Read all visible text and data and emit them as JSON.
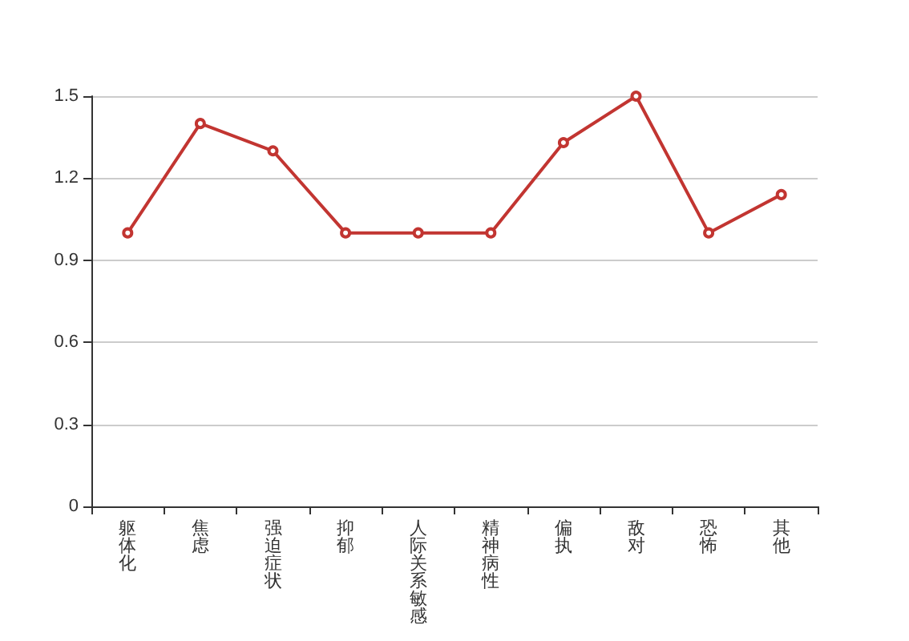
{
  "chart_data": {
    "type": "line",
    "categories": [
      "躯体化",
      "焦虑",
      "强迫症状",
      "抑郁",
      "人际关系敏感",
      "精神病性",
      "偏执",
      "敌对",
      "恐怖",
      "其他"
    ],
    "series": [
      {
        "color": "#c23531",
        "values": [
          1,
          1.4,
          1.3,
          1,
          1,
          1,
          1.33,
          1.5,
          1,
          1.14
        ]
      }
    ],
    "ylim": [
      0,
      1.5
    ],
    "yticks": [
      0,
      0.3,
      0.6,
      0.9,
      1.2,
      1.5
    ],
    "grid": "y",
    "marker": "circle",
    "line_style": "solid"
  }
}
